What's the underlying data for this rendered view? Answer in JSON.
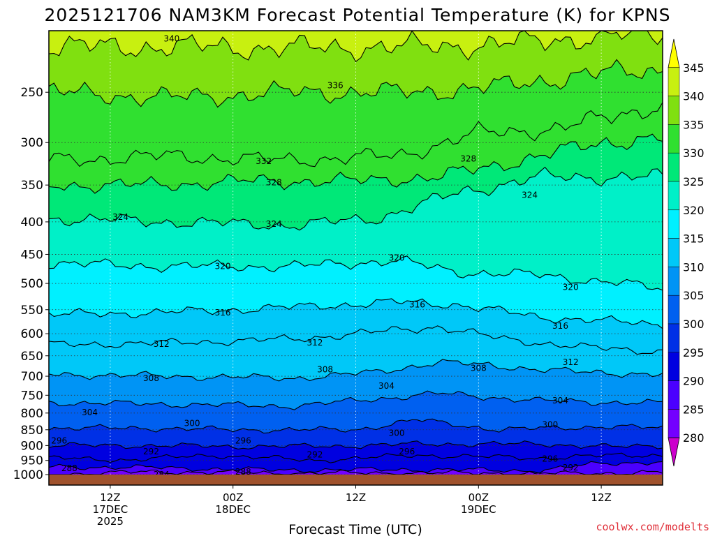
{
  "title": "2025121706 NAM3KM Forecast Potential Temperature (K) for KPNS",
  "credit": "coolwx.com/modelts",
  "colors": {
    "ground": "#a0522d",
    "contour": "#000000",
    "credit": "#e0303a"
  },
  "chart_data": {
    "type": "heatmap",
    "title": "2025121706 NAM3KM Forecast Potential Temperature (K) for KPNS",
    "xlabel": "Forecast Time (UTC)",
    "ylabel": "",
    "y_scale": "log-pressure",
    "y_axis_unit": "hPa",
    "y_ticks": [
      250,
      300,
      350,
      400,
      450,
      500,
      550,
      600,
      650,
      700,
      750,
      800,
      850,
      900,
      950,
      1000
    ],
    "ylim": [
      1000,
      200
    ],
    "x_ticks": [
      {
        "line1": "12Z",
        "line2": "17DEC",
        "line3": "2025"
      },
      {
        "line1": "00Z",
        "line2": "18DEC",
        "line3": ""
      },
      {
        "line1": "12Z",
        "line2": "",
        "line3": ""
      },
      {
        "line1": "00Z",
        "line2": "19DEC",
        "line3": ""
      },
      {
        "line1": "12Z",
        "line2": "",
        "line3": ""
      }
    ],
    "xlim_hours": [
      0,
      60
    ],
    "x_tick_hours": [
      6,
      18,
      30,
      42,
      54
    ],
    "grid": "dotted",
    "colorbar": {
      "levels": [
        280,
        285,
        290,
        295,
        300,
        305,
        310,
        315,
        320,
        325,
        330,
        335,
        340,
        345
      ],
      "colors": [
        "#cc00cc",
        "#9b00ee",
        "#7300ff",
        "#4b00ff",
        "#0000e0",
        "#0030e6",
        "#0060f0",
        "#0094f5",
        "#00c8f8",
        "#00f0ff",
        "#00f0c8",
        "#00e878",
        "#30e030",
        "#80e010",
        "#c8f010",
        "#ffff00"
      ]
    },
    "contour_interval": 4,
    "series": [
      {
        "theta": 284,
        "profile": [
          [
            0,
            1000
          ],
          [
            10,
            990
          ],
          [
            22,
            995
          ],
          [
            36,
            994
          ],
          [
            52,
            996
          ],
          [
            60,
            992
          ]
        ]
      },
      {
        "theta": 288,
        "profile": [
          [
            0,
            972
          ],
          [
            10,
            975
          ],
          [
            22,
            984
          ],
          [
            36,
            982
          ],
          [
            48,
            986
          ],
          [
            54,
            960
          ],
          [
            60,
            955
          ]
        ]
      },
      {
        "theta": 292,
        "profile": [
          [
            0,
            942
          ],
          [
            8,
            948
          ],
          [
            16,
            932
          ],
          [
            26,
            950
          ],
          [
            36,
            932
          ],
          [
            48,
            942
          ],
          [
            56,
            932
          ],
          [
            60,
            932
          ]
        ]
      },
      {
        "theta": 296,
        "profile": [
          [
            0,
            900
          ],
          [
            10,
            900
          ],
          [
            18,
            903
          ],
          [
            28,
            902
          ],
          [
            36,
            895
          ],
          [
            48,
            895
          ],
          [
            56,
            905
          ],
          [
            60,
            900
          ]
        ]
      },
      {
        "theta": 300,
        "profile": [
          [
            0,
            845
          ],
          [
            10,
            845
          ],
          [
            18,
            850
          ],
          [
            30,
            850
          ],
          [
            36,
            820
          ],
          [
            44,
            850
          ],
          [
            54,
            840
          ],
          [
            60,
            845
          ]
        ]
      },
      {
        "theta": 304,
        "profile": [
          [
            0,
            770
          ],
          [
            12,
            775
          ],
          [
            24,
            780
          ],
          [
            32,
            760
          ],
          [
            38,
            745
          ],
          [
            48,
            765
          ],
          [
            56,
            770
          ],
          [
            60,
            772
          ]
        ]
      },
      {
        "theta": 308,
        "profile": [
          [
            0,
            695
          ],
          [
            12,
            700
          ],
          [
            24,
            705
          ],
          [
            32,
            690
          ],
          [
            38,
            665
          ],
          [
            44,
            675
          ],
          [
            52,
            690
          ],
          [
            60,
            695
          ]
        ]
      },
      {
        "theta": 312,
        "profile": [
          [
            0,
            625
          ],
          [
            12,
            620
          ],
          [
            24,
            612
          ],
          [
            30,
            600
          ],
          [
            38,
            585
          ],
          [
            44,
            610
          ],
          [
            52,
            630
          ],
          [
            60,
            640
          ]
        ]
      },
      {
        "theta": 316,
        "profile": [
          [
            0,
            560
          ],
          [
            12,
            555
          ],
          [
            24,
            545
          ],
          [
            34,
            535
          ],
          [
            40,
            540
          ],
          [
            48,
            565
          ],
          [
            56,
            575
          ],
          [
            60,
            580
          ]
        ]
      },
      {
        "theta": 320,
        "profile": [
          [
            0,
            465
          ],
          [
            12,
            470
          ],
          [
            24,
            470
          ],
          [
            34,
            460
          ],
          [
            40,
            480
          ],
          [
            48,
            485
          ],
          [
            56,
            500
          ],
          [
            60,
            510
          ]
        ]
      },
      {
        "theta": 324,
        "profile": [
          [
            0,
            395
          ],
          [
            12,
            400
          ],
          [
            24,
            405
          ],
          [
            32,
            395
          ],
          [
            40,
            360
          ],
          [
            48,
            340
          ],
          [
            54,
            340
          ],
          [
            60,
            340
          ]
        ]
      },
      {
        "theta": 328,
        "profile": [
          [
            0,
            350
          ],
          [
            10,
            350
          ],
          [
            20,
            345
          ],
          [
            30,
            345
          ],
          [
            38,
            340
          ],
          [
            46,
            320
          ],
          [
            54,
            300
          ],
          [
            60,
            295
          ]
        ]
      },
      {
        "theta": 332,
        "profile": [
          [
            0,
            320
          ],
          [
            12,
            315
          ],
          [
            22,
            320
          ],
          [
            34,
            315
          ],
          [
            42,
            290
          ],
          [
            50,
            285
          ],
          [
            56,
            270
          ],
          [
            60,
            262
          ]
        ]
      },
      {
        "theta": 336,
        "profile": [
          [
            0,
            250
          ],
          [
            12,
            255
          ],
          [
            24,
            250
          ],
          [
            36,
            250
          ],
          [
            44,
            245
          ],
          [
            52,
            235
          ],
          [
            60,
            230
          ]
        ]
      },
      {
        "theta": 340,
        "profile": [
          [
            0,
            212
          ],
          [
            12,
            212
          ],
          [
            24,
            213
          ],
          [
            36,
            212
          ],
          [
            44,
            210
          ],
          [
            52,
            205
          ],
          [
            60,
            202
          ]
        ]
      }
    ],
    "contour_labels": [
      {
        "text": "340",
        "hour": 12,
        "p": 206
      },
      {
        "text": "336",
        "hour": 28,
        "p": 244
      },
      {
        "text": "332",
        "hour": 21,
        "p": 321
      },
      {
        "text": "328",
        "hour": 22,
        "p": 347
      },
      {
        "text": "328",
        "hour": 41,
        "p": 318
      },
      {
        "text": "324",
        "hour": 7,
        "p": 393
      },
      {
        "text": "324",
        "hour": 22,
        "p": 403
      },
      {
        "text": "324",
        "hour": 47,
        "p": 363
      },
      {
        "text": "320",
        "hour": 17,
        "p": 470
      },
      {
        "text": "320",
        "hour": 34,
        "p": 456
      },
      {
        "text": "320",
        "hour": 51,
        "p": 507
      },
      {
        "text": "316",
        "hour": 17,
        "p": 556
      },
      {
        "text": "316",
        "hour": 36,
        "p": 540
      },
      {
        "text": "316",
        "hour": 50,
        "p": 583
      },
      {
        "text": "312",
        "hour": 11,
        "p": 623
      },
      {
        "text": "312",
        "hour": 26,
        "p": 620
      },
      {
        "text": "312",
        "hour": 51,
        "p": 665
      },
      {
        "text": "308",
        "hour": 10,
        "p": 705
      },
      {
        "text": "308",
        "hour": 27,
        "p": 683
      },
      {
        "text": "308",
        "hour": 42,
        "p": 680
      },
      {
        "text": "304",
        "hour": 4,
        "p": 798
      },
      {
        "text": "304",
        "hour": 33,
        "p": 725
      },
      {
        "text": "304",
        "hour": 50,
        "p": 765
      },
      {
        "text": "300",
        "hour": 14,
        "p": 830
      },
      {
        "text": "300",
        "hour": 34,
        "p": 860
      },
      {
        "text": "300",
        "hour": 49,
        "p": 835
      },
      {
        "text": "296",
        "hour": 1,
        "p": 885
      },
      {
        "text": "296",
        "hour": 19,
        "p": 885
      },
      {
        "text": "296",
        "hour": 35,
        "p": 920
      },
      {
        "text": "296",
        "hour": 49,
        "p": 945
      },
      {
        "text": "292",
        "hour": 10,
        "p": 920
      },
      {
        "text": "292",
        "hour": 26,
        "p": 930
      },
      {
        "text": "292",
        "hour": 51,
        "p": 975
      },
      {
        "text": "288",
        "hour": 2,
        "p": 977
      },
      {
        "text": "288",
        "hour": 19,
        "p": 990
      },
      {
        "text": "284",
        "hour": 11,
        "p": 1000
      }
    ]
  }
}
